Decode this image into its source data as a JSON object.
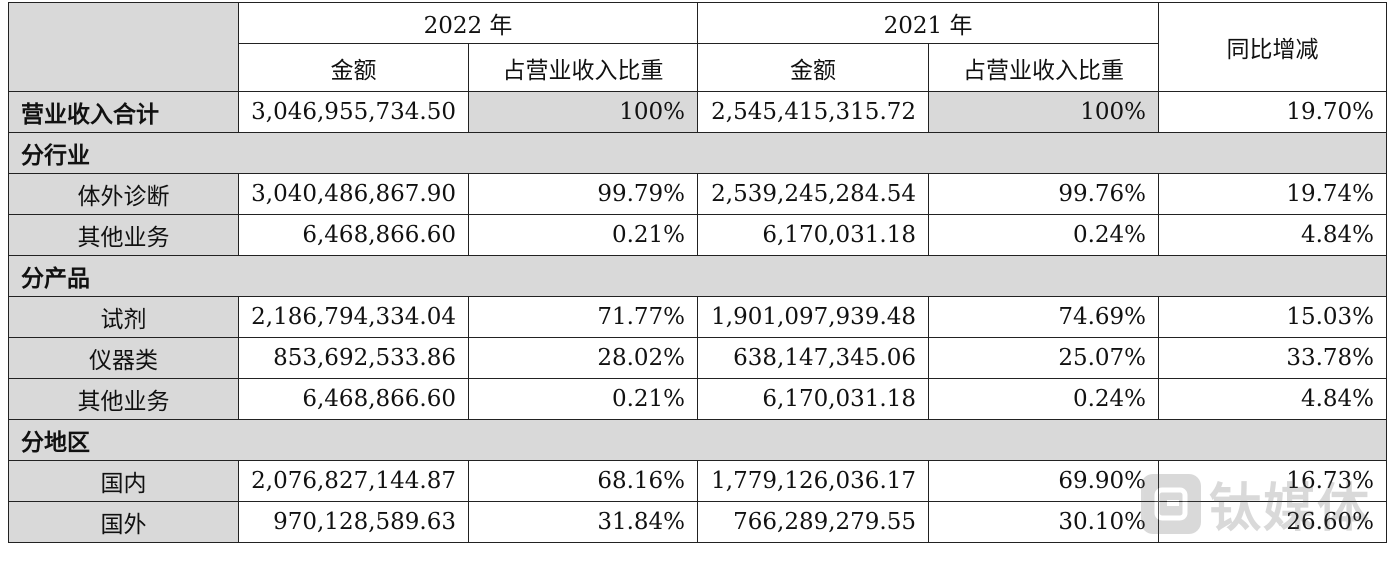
{
  "header": {
    "year_2022": "2022 年",
    "year_2021": "2021 年",
    "amount": "金额",
    "share": "占营业收入比重",
    "yoy": "同比增减"
  },
  "total": {
    "label": "营业收入合计",
    "amount_2022": "3,046,955,734.50",
    "share_2022": "100%",
    "amount_2021": "2,545,415,315.72",
    "share_2021": "100%",
    "yoy": "19.70%"
  },
  "sections": [
    {
      "title": "分行业",
      "rows": [
        {
          "label": "体外诊断",
          "amount_2022": "3,040,486,867.90",
          "share_2022": "99.79%",
          "amount_2021": "2,539,245,284.54",
          "share_2021": "99.76%",
          "yoy": "19.74%"
        },
        {
          "label": "其他业务",
          "amount_2022": "6,468,866.60",
          "share_2022": "0.21%",
          "amount_2021": "6,170,031.18",
          "share_2021": "0.24%",
          "yoy": "4.84%"
        }
      ]
    },
    {
      "title": "分产品",
      "rows": [
        {
          "label": "试剂",
          "amount_2022": "2,186,794,334.04",
          "share_2022": "71.77%",
          "amount_2021": "1,901,097,939.48",
          "share_2021": "74.69%",
          "yoy": "15.03%"
        },
        {
          "label": "仪器类",
          "amount_2022": "853,692,533.86",
          "share_2022": "28.02%",
          "amount_2021": "638,147,345.06",
          "share_2021": "25.07%",
          "yoy": "33.78%"
        },
        {
          "label": "其他业务",
          "amount_2022": "6,468,866.60",
          "share_2022": "0.21%",
          "amount_2021": "6,170,031.18",
          "share_2021": "0.24%",
          "yoy": "4.84%"
        }
      ]
    },
    {
      "title": "分地区",
      "rows": [
        {
          "label": "国内",
          "amount_2022": "2,076,827,144.87",
          "share_2022": "68.16%",
          "amount_2021": "1,779,126,036.17",
          "share_2021": "69.90%",
          "yoy": "16.73%"
        },
        {
          "label": "国外",
          "amount_2022": "970,128,589.63",
          "share_2022": "31.84%",
          "amount_2021": "766,289,279.55",
          "share_2021": "30.10%",
          "yoy": "26.60%"
        }
      ]
    }
  ],
  "watermark": {
    "text": "钛媒体",
    "icon": "tmtpost-logo-icon"
  }
}
